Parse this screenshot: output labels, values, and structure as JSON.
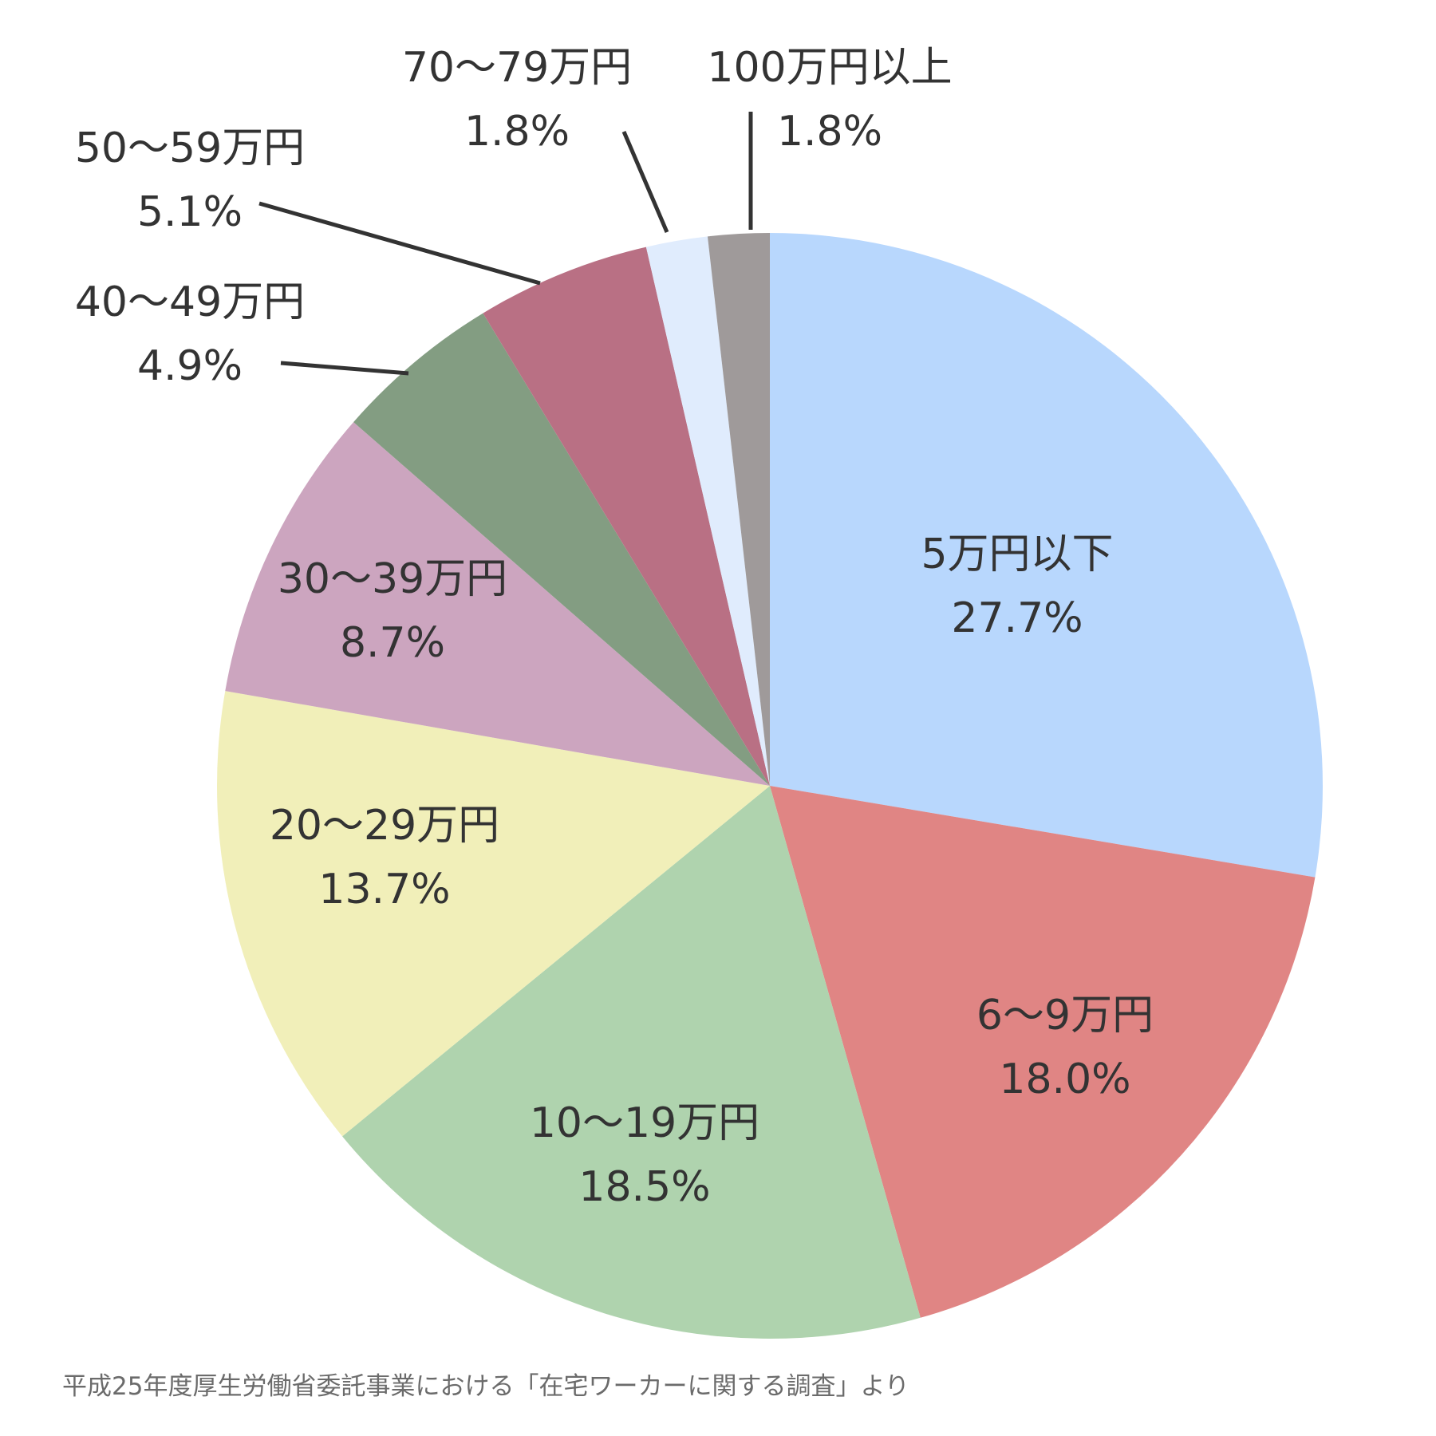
{
  "chart_data": {
    "type": "pie",
    "start": "12 o'clock",
    "direction": "clockwise",
    "label_color": "#333333",
    "slices": [
      {
        "category": "5万円以下",
        "value": 27.7,
        "value_label": "27.7%",
        "color": "#b8d7fd",
        "label_placement": "inside"
      },
      {
        "category": "6～9万円",
        "value": 18.0,
        "value_label": "18.0%",
        "color": "#e08584",
        "label_placement": "inside"
      },
      {
        "category": "10～19万円",
        "value": 18.5,
        "value_label": "18.5%",
        "color": "#afd3ae",
        "label_placement": "inside"
      },
      {
        "category": "20～29万円",
        "value": 13.7,
        "value_label": "13.7%",
        "color": "#f1efb9",
        "label_placement": "inside"
      },
      {
        "category": "30～39万円",
        "value": 8.7,
        "value_label": "8.7%",
        "color": "#cca5bf",
        "label_placement": "inside"
      },
      {
        "category": "40～49万円",
        "value": 4.9,
        "value_label": "4.9%",
        "color": "#839d82",
        "label_placement": "outside"
      },
      {
        "category": "50～59万円",
        "value": 5.1,
        "value_label": "5.1%",
        "color": "#b97084",
        "label_placement": "outside"
      },
      {
        "category": "70～79万円",
        "value": 1.8,
        "value_label": "1.8%",
        "color": "#e0ecfd",
        "label_placement": "outside"
      },
      {
        "category": "100万円以上",
        "value": 1.8,
        "value_label": "1.8%",
        "color": "#9f9a9a",
        "label_placement": "outside"
      }
    ]
  },
  "source_note": "平成25年度厚生労働省委託事業における「在宅ワーカーに関する調査」より"
}
